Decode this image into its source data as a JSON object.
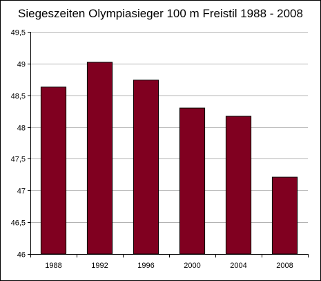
{
  "chart_data": {
    "type": "bar",
    "title": "Siegeszeiten Olympiasieger 100 m Freistil 1988 - 2008",
    "xlabel": "",
    "ylabel": "",
    "categories": [
      "1988",
      "1992",
      "1996",
      "2000",
      "2004",
      "2008"
    ],
    "values": [
      48.63,
      49.02,
      48.74,
      48.3,
      48.17,
      47.21
    ],
    "ylim": [
      46,
      49.5
    ],
    "yticks": [
      "46",
      "46,5",
      "47",
      "47,5",
      "48",
      "48,5",
      "49",
      "49,5"
    ],
    "ytick_values": [
      46,
      46.5,
      47,
      47.5,
      48,
      48.5,
      49,
      49.5
    ],
    "grid": true,
    "legend": "none",
    "colors": {
      "bar_fill": "#800020",
      "bar_stroke": "#000000",
      "grid": "#b3b3b3",
      "axis": "#000000"
    }
  }
}
